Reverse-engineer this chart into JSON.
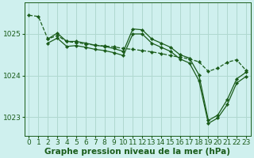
{
  "background_color": "#cff0ee",
  "grid_color": "#b0d8d0",
  "line_color": "#1a5c1a",
  "xlabel": "Graphe pression niveau de la mer (hPa)",
  "xlabel_fontsize": 7.5,
  "xlim": [
    -0.5,
    23.5
  ],
  "ylim": [
    1022.55,
    1025.75
  ],
  "yticks": [
    1023,
    1024,
    1025
  ],
  "xticks": [
    0,
    1,
    2,
    3,
    4,
    5,
    6,
    7,
    8,
    9,
    10,
    11,
    12,
    13,
    14,
    15,
    16,
    17,
    18,
    19,
    20,
    21,
    22,
    23
  ],
  "series": [
    {
      "x": [
        0,
        1,
        2,
        3,
        4,
        5,
        6,
        7,
        8,
        9,
        10,
        11,
        12,
        13,
        14,
        15,
        16,
        17,
        18,
        19,
        20,
        21,
        22,
        23
      ],
      "y": [
        1025.45,
        1025.42,
        1024.88,
        1024.96,
        1024.82,
        1024.79,
        1024.76,
        1024.73,
        1024.71,
        1024.69,
        1024.65,
        1024.63,
        1024.6,
        1024.57,
        1024.53,
        1024.48,
        1024.44,
        1024.4,
        1024.33,
        1024.1,
        1024.18,
        1024.32,
        1024.38,
        1024.12
      ],
      "marker": "D",
      "markersize": 2.2,
      "linewidth": 0.9,
      "linestyle": "--"
    },
    {
      "x": [
        2,
        3,
        4,
        5,
        6,
        7,
        8,
        9,
        10,
        11,
        12,
        13,
        14,
        15,
        16,
        17,
        18,
        19,
        20,
        21,
        22,
        23
      ],
      "y": [
        1024.88,
        1025.02,
        1024.82,
        1024.82,
        1024.78,
        1024.73,
        1024.7,
        1024.65,
        1024.58,
        1025.12,
        1025.1,
        1024.88,
        1024.78,
        1024.68,
        1024.5,
        1024.42,
        1024.02,
        1022.92,
        1023.05,
        1023.42,
        1023.92,
        1024.08
      ],
      "marker": "D",
      "markersize": 2.2,
      "linewidth": 0.9,
      "linestyle": "-"
    },
    {
      "x": [
        2,
        3,
        4,
        5,
        6,
        7,
        8,
        9,
        10,
        11,
        12,
        13,
        14,
        15,
        16,
        17,
        18,
        19,
        20,
        21,
        22,
        23
      ],
      "y": [
        1024.78,
        1024.9,
        1024.7,
        1024.72,
        1024.68,
        1024.63,
        1024.6,
        1024.55,
        1024.48,
        1025.0,
        1025.0,
        1024.78,
        1024.68,
        1024.58,
        1024.4,
        1024.3,
        1023.88,
        1022.85,
        1022.98,
        1023.3,
        1023.82,
        1023.98
      ],
      "marker": "D",
      "markersize": 2.2,
      "linewidth": 0.9,
      "linestyle": "-"
    }
  ],
  "tick_fontsize": 6.5,
  "tick_color": "#1a5c1a",
  "spine_color": "#1a5c1a"
}
